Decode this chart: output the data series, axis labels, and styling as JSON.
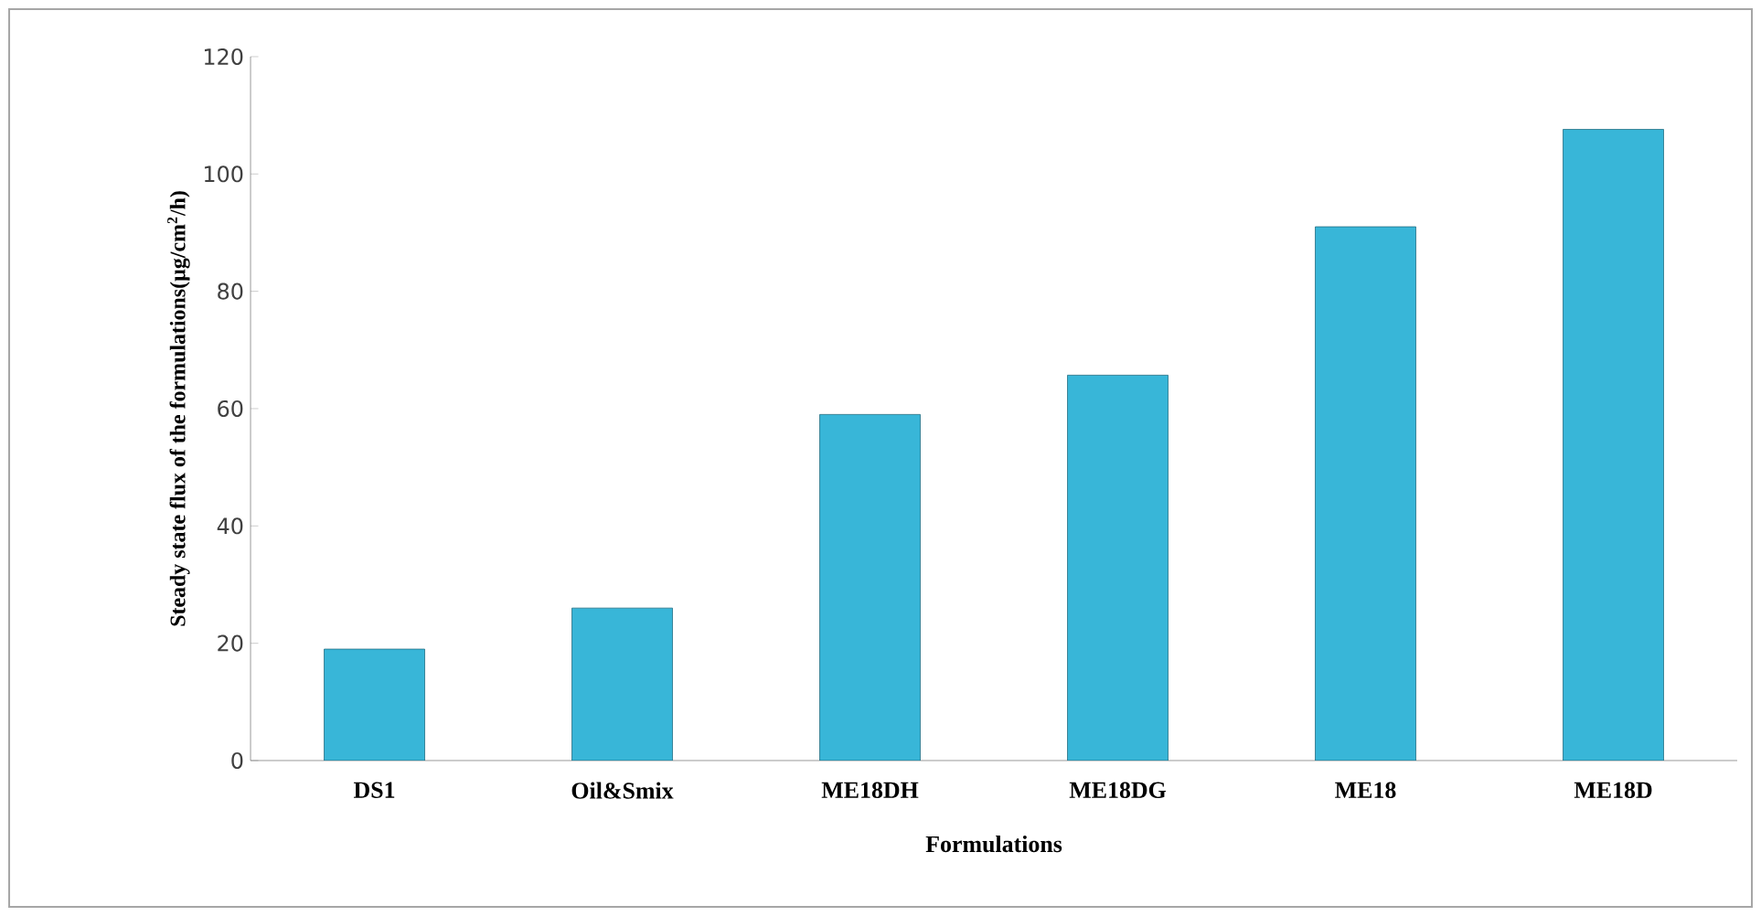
{
  "chart_data": {
    "type": "bar",
    "xlabel": "Formulations",
    "ylabel": "Steady state flux of the formulations(µg/cm$^{2}$/h)",
    "categories": [
      "DS1",
      "Oil&Smix",
      "ME18DH",
      "ME18DG",
      "ME18",
      "ME18D"
    ],
    "values": [
      19,
      26,
      59,
      65.7,
      91,
      107.6
    ],
    "color": "#38b6d8",
    "ylim": [
      0,
      120
    ],
    "yticks": [
      0,
      20,
      40,
      60,
      80,
      100,
      120
    ],
    "grid": false
  }
}
